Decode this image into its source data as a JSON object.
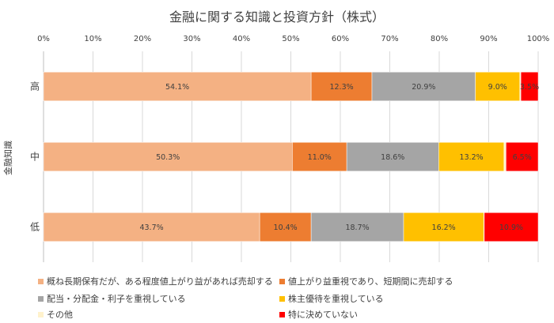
{
  "chart_data": {
    "type": "bar",
    "orientation": "horizontal",
    "stacked": true,
    "percent": true,
    "title": "金融に関する知識と投資方針（株式）",
    "ylabel": "金融知識",
    "xlim": [
      0,
      100
    ],
    "x_ticks": [
      "0%",
      "10%",
      "20%",
      "30%",
      "40%",
      "50%",
      "60%",
      "70%",
      "80%",
      "90%",
      "100%"
    ],
    "x_axis_position": "top",
    "grid": true,
    "legend_position": "bottom",
    "categories": [
      "高",
      "中",
      "低"
    ],
    "series": [
      {
        "name": "概ね長期保有だが、ある程度値上がり益があれば売却する",
        "color": "#F4B183",
        "values": [
          54.1,
          50.3,
          43.7
        ],
        "labels": [
          "54.1%",
          "50.3%",
          "43.7%"
        ]
      },
      {
        "name": "値上がり益重視であり、短期間に売却する",
        "color": "#ED7D31",
        "values": [
          12.3,
          11.0,
          10.4
        ],
        "labels": [
          "12.3%",
          "11.0%",
          "10.4%"
        ]
      },
      {
        "name": "配当・分配金・利子を重視している",
        "color": "#A5A5A5",
        "values": [
          20.9,
          18.6,
          18.7
        ],
        "labels": [
          "20.9%",
          "18.6%",
          "18.7%"
        ]
      },
      {
        "name": "株主優待を重視している",
        "color": "#FFC000",
        "values": [
          9.0,
          13.2,
          16.2
        ],
        "labels": [
          "9.0%",
          "13.2%",
          "16.2%"
        ]
      },
      {
        "name": "その他",
        "color": "#FFF2CC",
        "values": [
          0.2,
          0.4,
          0.1
        ],
        "labels": [
          "",
          "",
          ""
        ]
      },
      {
        "name": "特に決めていない",
        "color": "#FF0000",
        "values": [
          3.5,
          6.5,
          10.9
        ],
        "labels": [
          "3.5%",
          "6.5%",
          "10.9%"
        ]
      }
    ]
  }
}
